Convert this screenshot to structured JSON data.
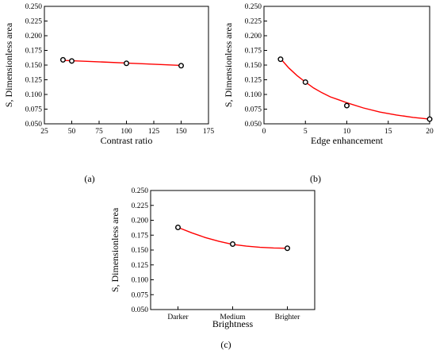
{
  "chart_data": [
    {
      "type": "scatter",
      "panel_label": "(a)",
      "xlabel": "Contrast ratio",
      "ylabel": "S, Dimensionless area",
      "xlim": [
        25,
        175
      ],
      "ylim": [
        0.05,
        0.25
      ],
      "x_ticks": [
        "25",
        "50",
        "75",
        "100",
        "125",
        "150",
        "175"
      ],
      "y_ticks": [
        "0.050",
        "0.075",
        "0.100",
        "0.125",
        "0.150",
        "0.175",
        "0.200",
        "0.225",
        "0.250"
      ],
      "series": [
        {
          "points": [
            [
              42,
              0.159
            ],
            [
              50,
              0.157
            ],
            [
              100,
              0.153
            ],
            [
              150,
              0.149
            ]
          ],
          "fit": [
            [
              42,
              0.158
            ],
            [
              75,
              0.1555
            ],
            [
              100,
              0.1535
            ],
            [
              125,
              0.1515
            ],
            [
              150,
              0.1495
            ]
          ],
          "marker_color": "#000000",
          "fit_color": "#ff0000"
        }
      ],
      "grid": false,
      "legend": "none"
    },
    {
      "type": "scatter",
      "panel_label": "(b)",
      "xlabel": "Edge enhancement",
      "ylabel": "S, Dimensionless area",
      "xlim": [
        0,
        20
      ],
      "ylim": [
        0.05,
        0.25
      ],
      "x_ticks": [
        "0",
        "5",
        "10",
        "15",
        "20"
      ],
      "y_ticks": [
        "0.050",
        "0.075",
        "0.100",
        "0.125",
        "0.150",
        "0.175",
        "0.200",
        "0.225",
        "0.250"
      ],
      "series": [
        {
          "points": [
            [
              2,
              0.16
            ],
            [
              5,
              0.121
            ],
            [
              10,
              0.081
            ],
            [
              20,
              0.058
            ]
          ],
          "fit": [
            [
              2,
              0.161
            ],
            [
              3,
              0.145
            ],
            [
              4,
              0.132
            ],
            [
              5,
              0.121
            ],
            [
              6,
              0.111
            ],
            [
              7,
              0.103
            ],
            [
              8,
              0.096
            ],
            [
              9,
              0.091
            ],
            [
              10,
              0.086
            ],
            [
              12,
              0.077
            ],
            [
              14,
              0.07
            ],
            [
              16,
              0.065
            ],
            [
              18,
              0.061
            ],
            [
              20,
              0.058
            ]
          ],
          "marker_color": "#000000",
          "fit_color": "#ff0000"
        }
      ],
      "grid": false,
      "legend": "none"
    },
    {
      "type": "scatter",
      "panel_label": "(c)",
      "xlabel": "Brightness",
      "ylabel": "S, Dimensionless area",
      "categories": [
        "Darker",
        "Medium",
        "Brighter"
      ],
      "ylim": [
        0.05,
        0.25
      ],
      "y_ticks": [
        "0.050",
        "0.075",
        "0.100",
        "0.125",
        "0.150",
        "0.175",
        "0.200",
        "0.225",
        "0.250"
      ],
      "series": [
        {
          "values": [
            0.188,
            0.16,
            0.153
          ],
          "fit": [
            [
              0,
              0.188
            ],
            [
              0.25,
              0.179
            ],
            [
              0.5,
              0.171
            ],
            [
              0.75,
              0.1645
            ],
            [
              1,
              0.1595
            ],
            [
              1.25,
              0.1565
            ],
            [
              1.5,
              0.1545
            ],
            [
              1.75,
              0.1535
            ],
            [
              2,
              0.153
            ]
          ],
          "marker_color": "#000000",
          "fit_color": "#ff0000"
        }
      ],
      "grid": false,
      "legend": "none"
    }
  ]
}
